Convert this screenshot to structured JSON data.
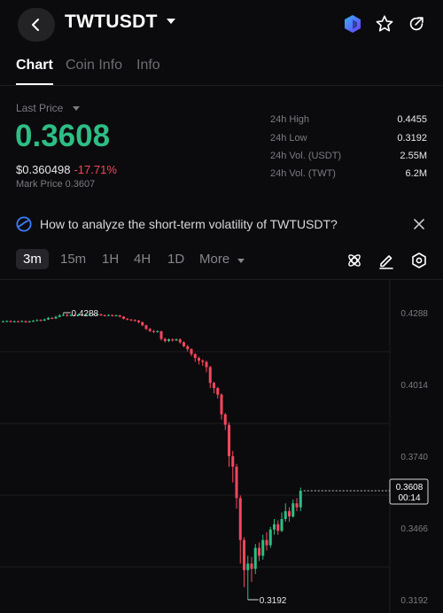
{
  "header": {
    "symbol": "TWTUSDT",
    "icons": [
      "back-icon",
      "dropdown-caret-icon",
      "brand-logo-icon",
      "star-icon",
      "share-icon"
    ]
  },
  "tabs": [
    {
      "label": "Chart",
      "active": true
    },
    {
      "label": "Coin Info",
      "active": false
    },
    {
      "label": "Info",
      "active": false
    }
  ],
  "price": {
    "last_label": "Last Price",
    "last": "0.3608",
    "usd": "$0.360498",
    "change_pct": "-17.71%",
    "mark_label": "Mark Price 0.3607",
    "up_color": "#2ebd85",
    "down_color": "#f6465d"
  },
  "stats": [
    {
      "label": "24h High",
      "value": "0.4455"
    },
    {
      "label": "24h Low",
      "value": "0.3192"
    },
    {
      "label": "24h Vol. (USDT)",
      "value": "2.55M"
    },
    {
      "label": "24h Vol. (TWT)",
      "value": "6.2M"
    }
  ],
  "banner": {
    "text": "How to analyze the short-term volatility of TWTUSDT?",
    "icon": "insight-icon"
  },
  "timeframes": [
    "3m",
    "15m",
    "1H",
    "4H",
    "1D",
    "More"
  ],
  "tools": [
    "indicator-icon",
    "draw-pencil-icon",
    "settings-hex-icon"
  ],
  "chart_data": {
    "type": "candlestick",
    "y_ticks": [
      "0.4288",
      "0.4014",
      "0.3740",
      "0.3466",
      "0.3192"
    ],
    "ylim": [
      0.3192,
      0.4288
    ],
    "high_marker": "0.4288",
    "low_marker": "0.3192",
    "current_price": "0.3608",
    "countdown": "00:14",
    "candles": [
      [
        0.4255,
        0.4255,
        0.4258,
        0.4252
      ],
      [
        0.4255,
        0.4256,
        0.4259,
        0.4252
      ],
      [
        0.4256,
        0.4253,
        0.4259,
        0.4251
      ],
      [
        0.4253,
        0.4255,
        0.4258,
        0.4251
      ],
      [
        0.4255,
        0.4254,
        0.4258,
        0.4251
      ],
      [
        0.4254,
        0.4256,
        0.4259,
        0.4252
      ],
      [
        0.4256,
        0.4252,
        0.4258,
        0.4249
      ],
      [
        0.4252,
        0.4255,
        0.4258,
        0.425
      ],
      [
        0.4255,
        0.4257,
        0.426,
        0.4253
      ],
      [
        0.4257,
        0.426,
        0.4263,
        0.4255
      ],
      [
        0.426,
        0.4258,
        0.4263,
        0.4255
      ],
      [
        0.4258,
        0.4262,
        0.4266,
        0.4256
      ],
      [
        0.4262,
        0.4268,
        0.4272,
        0.426
      ],
      [
        0.4268,
        0.4266,
        0.4272,
        0.4263
      ],
      [
        0.4266,
        0.4272,
        0.4276,
        0.4264
      ],
      [
        0.4272,
        0.4278,
        0.4282,
        0.427
      ],
      [
        0.4278,
        0.428,
        0.4288,
        0.4275
      ],
      [
        0.428,
        0.4276,
        0.4283,
        0.4273
      ],
      [
        0.4276,
        0.4279,
        0.4282,
        0.4274
      ],
      [
        0.4279,
        0.4277,
        0.4282,
        0.4274
      ],
      [
        0.4277,
        0.4281,
        0.4284,
        0.4275
      ],
      [
        0.4281,
        0.4279,
        0.4284,
        0.4276
      ],
      [
        0.4279,
        0.4282,
        0.4285,
        0.4277
      ],
      [
        0.4282,
        0.4283,
        0.4286,
        0.428
      ],
      [
        0.4283,
        0.428,
        0.4286,
        0.4277
      ],
      [
        0.428,
        0.4282,
        0.4285,
        0.4278
      ],
      [
        0.4282,
        0.4278,
        0.4284,
        0.4275
      ],
      [
        0.4278,
        0.4277,
        0.4281,
        0.4274
      ],
      [
        0.4277,
        0.4279,
        0.4282,
        0.4275
      ],
      [
        0.4279,
        0.4276,
        0.4281,
        0.4273
      ],
      [
        0.4276,
        0.4278,
        0.4281,
        0.4274
      ],
      [
        0.4278,
        0.4273,
        0.428,
        0.427
      ],
      [
        0.4273,
        0.4265,
        0.4275,
        0.4262
      ],
      [
        0.4265,
        0.4262,
        0.4268,
        0.4259
      ],
      [
        0.4262,
        0.426,
        0.4264,
        0.4256
      ],
      [
        0.426,
        0.4258,
        0.4263,
        0.4254
      ],
      [
        0.4258,
        0.4252,
        0.426,
        0.4248
      ],
      [
        0.4252,
        0.424,
        0.4254,
        0.4236
      ],
      [
        0.424,
        0.4226,
        0.4242,
        0.4222
      ],
      [
        0.4226,
        0.4218,
        0.423,
        0.4214
      ],
      [
        0.4218,
        0.4215,
        0.4222,
        0.421
      ],
      [
        0.4215,
        0.4217,
        0.4221,
        0.4212
      ],
      [
        0.4217,
        0.4188,
        0.4219,
        0.4182
      ],
      [
        0.4188,
        0.418,
        0.4192,
        0.4174
      ],
      [
        0.418,
        0.4186,
        0.419,
        0.4176
      ],
      [
        0.4186,
        0.4182,
        0.419,
        0.4178
      ],
      [
        0.4182,
        0.4186,
        0.419,
        0.418
      ],
      [
        0.4186,
        0.4175,
        0.419,
        0.417
      ],
      [
        0.4175,
        0.416,
        0.4178,
        0.4156
      ],
      [
        0.416,
        0.4149,
        0.4165,
        0.414
      ],
      [
        0.4149,
        0.413,
        0.4152,
        0.4122
      ],
      [
        0.413,
        0.4115,
        0.4133,
        0.41
      ],
      [
        0.4115,
        0.4105,
        0.412,
        0.409
      ],
      [
        0.4105,
        0.41,
        0.411,
        0.4085
      ],
      [
        0.41,
        0.408,
        0.4105,
        0.406
      ],
      [
        0.408,
        0.402,
        0.4085,
        0.4
      ],
      [
        0.402,
        0.4,
        0.4024,
        0.398
      ],
      [
        0.4,
        0.3975,
        0.4005,
        0.396
      ],
      [
        0.3975,
        0.39,
        0.398,
        0.388
      ],
      [
        0.39,
        0.386,
        0.3905,
        0.384
      ],
      [
        0.386,
        0.374,
        0.387,
        0.37
      ],
      [
        0.374,
        0.37,
        0.376,
        0.364
      ],
      [
        0.37,
        0.358,
        0.371,
        0.354
      ],
      [
        0.358,
        0.342,
        0.359,
        0.333
      ],
      [
        0.342,
        0.3305,
        0.343,
        0.324
      ],
      [
        0.3305,
        0.333,
        0.336,
        0.3192
      ],
      [
        0.333,
        0.331,
        0.3355,
        0.326
      ],
      [
        0.331,
        0.339,
        0.3405,
        0.329
      ],
      [
        0.339,
        0.336,
        0.341,
        0.334
      ],
      [
        0.336,
        0.342,
        0.344,
        0.3345
      ],
      [
        0.342,
        0.34,
        0.345,
        0.338
      ],
      [
        0.34,
        0.346,
        0.347,
        0.339
      ],
      [
        0.346,
        0.348,
        0.35,
        0.344
      ],
      [
        0.348,
        0.3455,
        0.3495,
        0.344
      ],
      [
        0.3455,
        0.35,
        0.3525,
        0.345
      ],
      [
        0.35,
        0.353,
        0.356,
        0.349
      ],
      [
        0.353,
        0.351,
        0.3545,
        0.349
      ],
      [
        0.351,
        0.356,
        0.3575,
        0.3505
      ],
      [
        0.356,
        0.3545,
        0.358,
        0.353
      ],
      [
        0.3545,
        0.3608,
        0.362,
        0.353
      ]
    ]
  }
}
